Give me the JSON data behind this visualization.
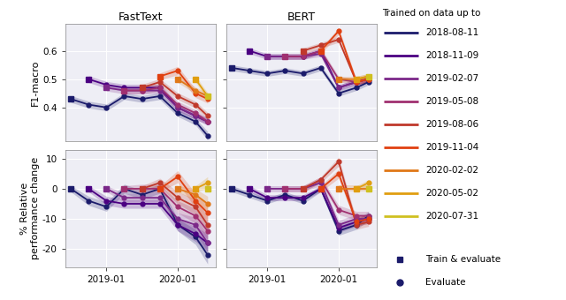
{
  "training_dates": [
    "2018-08-11",
    "2018-11-09",
    "2019-02-07",
    "2019-05-08",
    "2019-08-06",
    "2019-11-04",
    "2020-02-02",
    "2020-05-02",
    "2020-07-31"
  ],
  "colors": [
    "#1b1b6b",
    "#4b0082",
    "#7b2889",
    "#a03070",
    "#c0392b",
    "#e04010",
    "#e07818",
    "#e09e10",
    "#cfc020"
  ],
  "col_titles": [
    "FastText",
    "BERT"
  ],
  "ylabel_top": "F1-macro",
  "ylabel_bot": "% Relative\nperformance change",
  "legend_title": "Trained on data up to",
  "background_color": "#eeeef5",
  "x_dates_numeric": {
    "2018-08-11": 0.0,
    "2018-11-09": 0.25,
    "2019-02-07": 0.5,
    "2019-05-08": 0.75,
    "2019-08-06": 1.0,
    "2019-11-04": 1.25,
    "2020-02-02": 1.5,
    "2020-05-02": 1.75,
    "2020-07-31": 1.92
  },
  "x_tick_vals": [
    0.5,
    1.5
  ],
  "x_tick_labels": [
    "2019-01",
    "2020-01"
  ],
  "fasttext_f1": {
    "2018-08-11": {
      "train": "2018-08-11",
      "evals": [
        "2018-08-11",
        "2018-11-09",
        "2019-02-07",
        "2019-05-08",
        "2019-08-06",
        "2019-11-04",
        "2020-02-02",
        "2020-05-02",
        "2020-07-31"
      ],
      "y": [
        0.43,
        0.41,
        0.4,
        0.44,
        0.43,
        0.44,
        0.38,
        0.35,
        0.3
      ],
      "yerr": [
        0.012,
        0.012,
        0.012,
        0.012,
        0.012,
        0.012,
        0.012,
        0.012,
        0.015
      ]
    },
    "2018-11-09": {
      "train": "2018-11-09",
      "evals": [
        "2018-11-09",
        "2019-02-07",
        "2019-05-08",
        "2019-08-06",
        "2019-11-04",
        "2020-02-02",
        "2020-05-02",
        "2020-07-31"
      ],
      "y": [
        0.5,
        0.48,
        0.47,
        0.47,
        0.47,
        0.4,
        0.37,
        0.35
      ],
      "yerr": [
        0.012,
        0.012,
        0.012,
        0.012,
        0.012,
        0.012,
        0.012,
        0.012
      ]
    },
    "2019-02-07": {
      "train": "2019-02-07",
      "evals": [
        "2019-02-07",
        "2019-05-08",
        "2019-08-06",
        "2019-11-04",
        "2020-02-02",
        "2020-05-02",
        "2020-07-31"
      ],
      "y": [
        0.47,
        0.46,
        0.46,
        0.46,
        0.4,
        0.37,
        0.35
      ],
      "yerr": [
        0.012,
        0.012,
        0.012,
        0.012,
        0.012,
        0.012,
        0.012
      ]
    },
    "2019-05-08": {
      "train": "2019-05-08",
      "evals": [
        "2019-05-08",
        "2019-08-06",
        "2019-11-04",
        "2020-02-02",
        "2020-05-02",
        "2020-07-31"
      ],
      "y": [
        0.46,
        0.46,
        0.47,
        0.41,
        0.38,
        0.35
      ],
      "yerr": [
        0.012,
        0.012,
        0.012,
        0.012,
        0.012,
        0.012
      ]
    },
    "2019-08-06": {
      "train": "2019-08-06",
      "evals": [
        "2019-08-06",
        "2019-11-04",
        "2020-02-02",
        "2020-05-02",
        "2020-07-31"
      ],
      "y": [
        0.47,
        0.49,
        0.44,
        0.41,
        0.37
      ],
      "yerr": [
        0.012,
        0.012,
        0.012,
        0.012,
        0.012
      ]
    },
    "2019-11-04": {
      "train": "2019-11-04",
      "evals": [
        "2019-11-04",
        "2020-02-02",
        "2020-05-02",
        "2020-07-31"
      ],
      "y": [
        0.51,
        0.53,
        0.45,
        0.43
      ],
      "yerr": [
        0.012,
        0.015,
        0.015,
        0.015
      ]
    },
    "2020-02-02": {
      "train": "2020-02-02",
      "evals": [
        "2020-02-02",
        "2020-05-02",
        "2020-07-31"
      ],
      "y": [
        0.5,
        0.46,
        0.44
      ],
      "yerr": [
        0.012,
        0.012,
        0.012
      ]
    },
    "2020-05-02": {
      "train": "2020-05-02",
      "evals": [
        "2020-05-02",
        "2020-07-31"
      ],
      "y": [
        0.5,
        0.44
      ],
      "yerr": [
        0.012,
        0.012
      ]
    },
    "2020-07-31": {
      "train": "2020-07-31",
      "evals": [
        "2020-07-31"
      ],
      "y": [
        0.44
      ],
      "yerr": [
        0.012
      ]
    }
  },
  "fasttext_rel": {
    "2018-08-11": {
      "train": "2018-08-11",
      "evals": [
        "2018-08-11",
        "2018-11-09",
        "2019-02-07",
        "2019-05-08",
        "2019-08-06",
        "2019-11-04",
        "2020-02-02",
        "2020-05-02",
        "2020-07-31"
      ],
      "y": [
        0,
        -4,
        -6,
        0,
        -2,
        0,
        -12,
        -16,
        -22
      ],
      "yerr": [
        1,
        1.5,
        1.5,
        1.5,
        1.5,
        1.5,
        2,
        2.5,
        3
      ]
    },
    "2018-11-09": {
      "train": "2018-11-09",
      "evals": [
        "2018-11-09",
        "2019-02-07",
        "2019-05-08",
        "2019-08-06",
        "2019-11-04",
        "2020-02-02",
        "2020-05-02",
        "2020-07-31"
      ],
      "y": [
        0,
        -4,
        -5,
        -5,
        -5,
        -12,
        -15,
        -18
      ],
      "yerr": [
        1,
        1.5,
        1.5,
        1.5,
        1.5,
        2,
        2.5,
        3
      ]
    },
    "2019-02-07": {
      "train": "2019-02-07",
      "evals": [
        "2019-02-07",
        "2019-05-08",
        "2019-08-06",
        "2019-11-04",
        "2020-02-02",
        "2020-05-02",
        "2020-07-31"
      ],
      "y": [
        0,
        -3,
        -3,
        -3,
        -10,
        -12,
        -18
      ],
      "yerr": [
        1,
        1.5,
        1.5,
        1.5,
        2,
        2.5,
        3
      ]
    },
    "2019-05-08": {
      "train": "2019-05-08",
      "evals": [
        "2019-05-08",
        "2019-08-06",
        "2019-11-04",
        "2020-02-02",
        "2020-05-02",
        "2020-07-31"
      ],
      "y": [
        0,
        0,
        0,
        -6,
        -9,
        -14
      ],
      "yerr": [
        1,
        1.5,
        1.5,
        2,
        2.5,
        3
      ]
    },
    "2019-08-06": {
      "train": "2019-08-06",
      "evals": [
        "2019-08-06",
        "2019-11-04",
        "2020-02-02",
        "2020-05-02",
        "2020-07-31"
      ],
      "y": [
        0,
        2,
        -3,
        -6,
        -12
      ],
      "yerr": [
        1,
        1.5,
        2,
        2.5,
        3
      ]
    },
    "2019-11-04": {
      "train": "2019-11-04",
      "evals": [
        "2019-11-04",
        "2020-02-02",
        "2020-05-02",
        "2020-07-31"
      ],
      "y": [
        0,
        4,
        -4,
        -8
      ],
      "yerr": [
        1,
        2,
        2.5,
        3
      ]
    },
    "2020-02-02": {
      "train": "2020-02-02",
      "evals": [
        "2020-02-02",
        "2020-05-02",
        "2020-07-31"
      ],
      "y": [
        0,
        -2,
        -5
      ],
      "yerr": [
        1,
        2,
        2.5
      ]
    },
    "2020-05-02": {
      "train": "2020-05-02",
      "evals": [
        "2020-05-02",
        "2020-07-31"
      ],
      "y": [
        0,
        2
      ],
      "yerr": [
        1,
        2
      ]
    },
    "2020-07-31": {
      "train": "2020-07-31",
      "evals": [
        "2020-07-31"
      ],
      "y": [
        0
      ],
      "yerr": [
        1
      ]
    }
  },
  "bert_f1": {
    "2018-08-11": {
      "train": "2018-08-11",
      "evals": [
        "2018-08-11",
        "2018-11-09",
        "2019-02-07",
        "2019-05-08",
        "2019-08-06",
        "2019-11-04",
        "2020-02-02",
        "2020-05-02",
        "2020-07-31"
      ],
      "y": [
        0.54,
        0.53,
        0.52,
        0.53,
        0.52,
        0.54,
        0.45,
        0.47,
        0.49
      ],
      "yerr": [
        0.01,
        0.01,
        0.01,
        0.01,
        0.01,
        0.01,
        0.01,
        0.01,
        0.01
      ]
    },
    "2018-11-09": {
      "train": "2018-11-09",
      "evals": [
        "2018-11-09",
        "2019-02-07",
        "2019-05-08",
        "2019-08-06",
        "2019-11-04",
        "2020-02-02",
        "2020-05-02",
        "2020-07-31"
      ],
      "y": [
        0.6,
        0.58,
        0.58,
        0.58,
        0.6,
        0.47,
        0.49,
        0.5
      ],
      "yerr": [
        0.01,
        0.01,
        0.01,
        0.01,
        0.01,
        0.01,
        0.01,
        0.01
      ]
    },
    "2019-02-07": {
      "train": "2019-02-07",
      "evals": [
        "2019-02-07",
        "2019-05-08",
        "2019-08-06",
        "2019-11-04",
        "2020-02-02",
        "2020-05-02",
        "2020-07-31"
      ],
      "y": [
        0.58,
        0.58,
        0.58,
        0.59,
        0.47,
        0.49,
        0.5
      ],
      "yerr": [
        0.01,
        0.01,
        0.01,
        0.01,
        0.01,
        0.01,
        0.01
      ]
    },
    "2019-05-08": {
      "train": "2019-05-08",
      "evals": [
        "2019-05-08",
        "2019-08-06",
        "2019-11-04",
        "2020-02-02",
        "2020-05-02",
        "2020-07-31"
      ],
      "y": [
        0.58,
        0.58,
        0.6,
        0.5,
        0.49,
        0.5
      ],
      "yerr": [
        0.01,
        0.01,
        0.01,
        0.01,
        0.01,
        0.01
      ]
    },
    "2019-08-06": {
      "train": "2019-08-06",
      "evals": [
        "2019-08-06",
        "2019-11-04",
        "2020-02-02",
        "2020-05-02",
        "2020-07-31"
      ],
      "y": [
        0.6,
        0.62,
        0.64,
        0.49,
        0.5
      ],
      "yerr": [
        0.01,
        0.01,
        0.01,
        0.01,
        0.01
      ]
    },
    "2019-11-04": {
      "train": "2019-11-04",
      "evals": [
        "2019-11-04",
        "2020-02-02",
        "2020-05-02",
        "2020-07-31"
      ],
      "y": [
        0.6,
        0.67,
        0.49,
        0.5
      ],
      "yerr": [
        0.01,
        0.012,
        0.01,
        0.01
      ]
    },
    "2020-02-02": {
      "train": "2020-02-02",
      "evals": [
        "2020-02-02",
        "2020-05-02",
        "2020-07-31"
      ],
      "y": [
        0.5,
        0.5,
        0.51
      ],
      "yerr": [
        0.01,
        0.01,
        0.01
      ]
    },
    "2020-05-02": {
      "train": "2020-05-02",
      "evals": [
        "2020-05-02",
        "2020-07-31"
      ],
      "y": [
        0.5,
        0.51
      ],
      "yerr": [
        0.01,
        0.01
      ]
    },
    "2020-07-31": {
      "train": "2020-07-31",
      "evals": [
        "2020-07-31"
      ],
      "y": [
        0.51
      ],
      "yerr": [
        0.01
      ]
    }
  },
  "bert_rel": {
    "2018-08-11": {
      "train": "2018-08-11",
      "evals": [
        "2018-08-11",
        "2018-11-09",
        "2019-02-07",
        "2019-05-08",
        "2019-08-06",
        "2019-11-04",
        "2020-02-02",
        "2020-05-02",
        "2020-07-31"
      ],
      "y": [
        0,
        -2,
        -4,
        -2,
        -4,
        0,
        -14,
        -12,
        -9
      ],
      "yerr": [
        1,
        1,
        1,
        1,
        1,
        1,
        1.5,
        1.5,
        1.5
      ]
    },
    "2018-11-09": {
      "train": "2018-11-09",
      "evals": [
        "2018-11-09",
        "2019-02-07",
        "2019-05-08",
        "2019-08-06",
        "2019-11-04",
        "2020-02-02",
        "2020-05-02",
        "2020-07-31"
      ],
      "y": [
        0,
        -3,
        -3,
        -3,
        0,
        -13,
        -11,
        -10
      ],
      "yerr": [
        1,
        1,
        1,
        1,
        1,
        1.5,
        1.5,
        1.5
      ]
    },
    "2019-02-07": {
      "train": "2019-02-07",
      "evals": [
        "2019-02-07",
        "2019-05-08",
        "2019-08-06",
        "2019-11-04",
        "2020-02-02",
        "2020-05-02",
        "2020-07-31"
      ],
      "y": [
        0,
        0,
        0,
        2,
        -12,
        -10,
        -10
      ],
      "yerr": [
        1,
        1,
        1,
        1,
        1.5,
        1.5,
        1.5
      ]
    },
    "2019-05-08": {
      "train": "2019-05-08",
      "evals": [
        "2019-05-08",
        "2019-08-06",
        "2019-11-04",
        "2020-02-02",
        "2020-05-02",
        "2020-07-31"
      ],
      "y": [
        0,
        0,
        3,
        -7,
        -9,
        -9
      ],
      "yerr": [
        1,
        1,
        1,
        1.5,
        1.5,
        1.5
      ]
    },
    "2019-08-06": {
      "train": "2019-08-06",
      "evals": [
        "2019-08-06",
        "2019-11-04",
        "2020-02-02",
        "2020-05-02",
        "2020-07-31"
      ],
      "y": [
        0,
        3,
        9,
        -12,
        -11
      ],
      "yerr": [
        1,
        1,
        1.5,
        1.5,
        1.5
      ]
    },
    "2019-11-04": {
      "train": "2019-11-04",
      "evals": [
        "2019-11-04",
        "2020-02-02",
        "2020-05-02",
        "2020-07-31"
      ],
      "y": [
        0,
        5,
        -11,
        -10
      ],
      "yerr": [
        1,
        1.5,
        1.5,
        1.5
      ]
    },
    "2020-02-02": {
      "train": "2020-02-02",
      "evals": [
        "2020-02-02",
        "2020-05-02",
        "2020-07-31"
      ],
      "y": [
        0,
        0,
        0
      ],
      "yerr": [
        1,
        1,
        1
      ]
    },
    "2020-05-02": {
      "train": "2020-05-02",
      "evals": [
        "2020-05-02",
        "2020-07-31"
      ],
      "y": [
        0,
        2
      ],
      "yerr": [
        1,
        1
      ]
    },
    "2020-07-31": {
      "train": "2020-07-31",
      "evals": [
        "2020-07-31"
      ],
      "y": [
        0
      ],
      "yerr": [
        1
      ]
    }
  }
}
